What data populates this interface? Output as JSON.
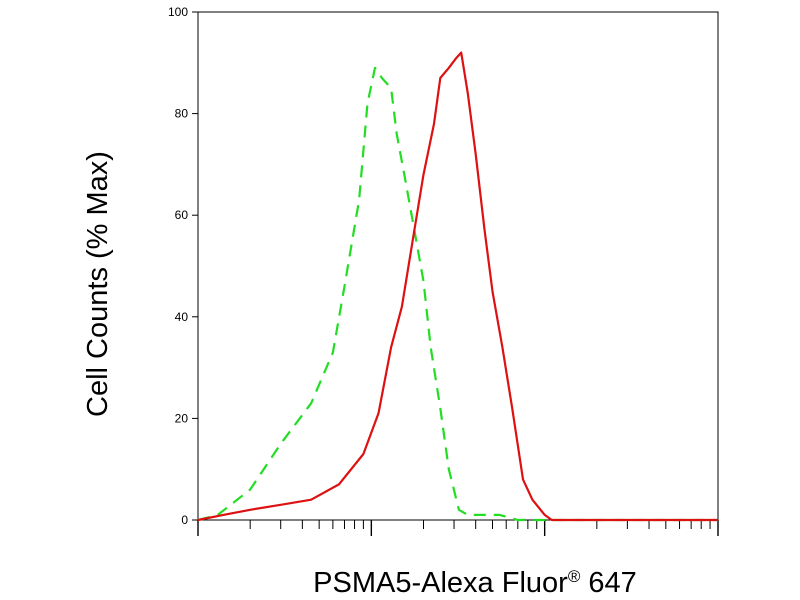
{
  "chart_data": {
    "type": "line",
    "xlabel": "PSMA5-Alexa Fluor",
    "xlabel_sup": "®",
    "xlabel_suffix": " 647",
    "ylabel": "Cell Counts (% Max)",
    "x_scale": "log",
    "xlim": [
      1,
      1000
    ],
    "ylim": [
      0,
      100
    ],
    "y_ticks": [
      "0",
      "20",
      "40",
      "60",
      "80",
      "100"
    ],
    "grid": false,
    "series": [
      {
        "style": "dashed",
        "color": "#22dd22",
        "x": [
          1.0,
          1.3,
          2.0,
          3.0,
          4.5,
          6.0,
          7.0,
          8.5,
          9.5,
          10.5,
          11.5,
          13.0,
          14.0,
          15.5,
          17.5,
          20.0,
          22.0,
          25.0,
          28.0,
          32.0,
          36.0,
          40.0,
          45.0,
          55.0,
          70.0,
          100.0,
          150.0,
          300.0,
          1000.0
        ],
        "y": [
          0,
          1,
          6,
          15,
          23,
          33,
          46,
          63,
          82,
          89,
          87,
          85,
          76,
          68,
          58,
          47,
          34,
          22,
          10,
          2,
          1,
          1,
          1,
          1,
          0,
          0,
          0,
          0,
          0
        ]
      },
      {
        "style": "solid",
        "color": "#dd1111",
        "x": [
          1.0,
          1.4,
          2.0,
          3.0,
          4.5,
          6.5,
          9.0,
          11.0,
          13.0,
          15.0,
          17.5,
          20.0,
          23.0,
          25.0,
          28.0,
          31.0,
          33.0,
          36.0,
          40.0,
          45.0,
          50.0,
          57.0,
          65.0,
          75.0,
          85.0,
          100.0,
          110.0,
          1000.0
        ],
        "y": [
          0,
          1,
          2,
          3,
          4,
          7,
          13,
          21,
          34,
          42,
          56,
          68,
          78,
          87,
          89,
          91,
          92,
          84,
          72,
          57,
          45,
          34,
          22,
          8,
          4,
          1,
          0,
          0
        ]
      }
    ]
  }
}
